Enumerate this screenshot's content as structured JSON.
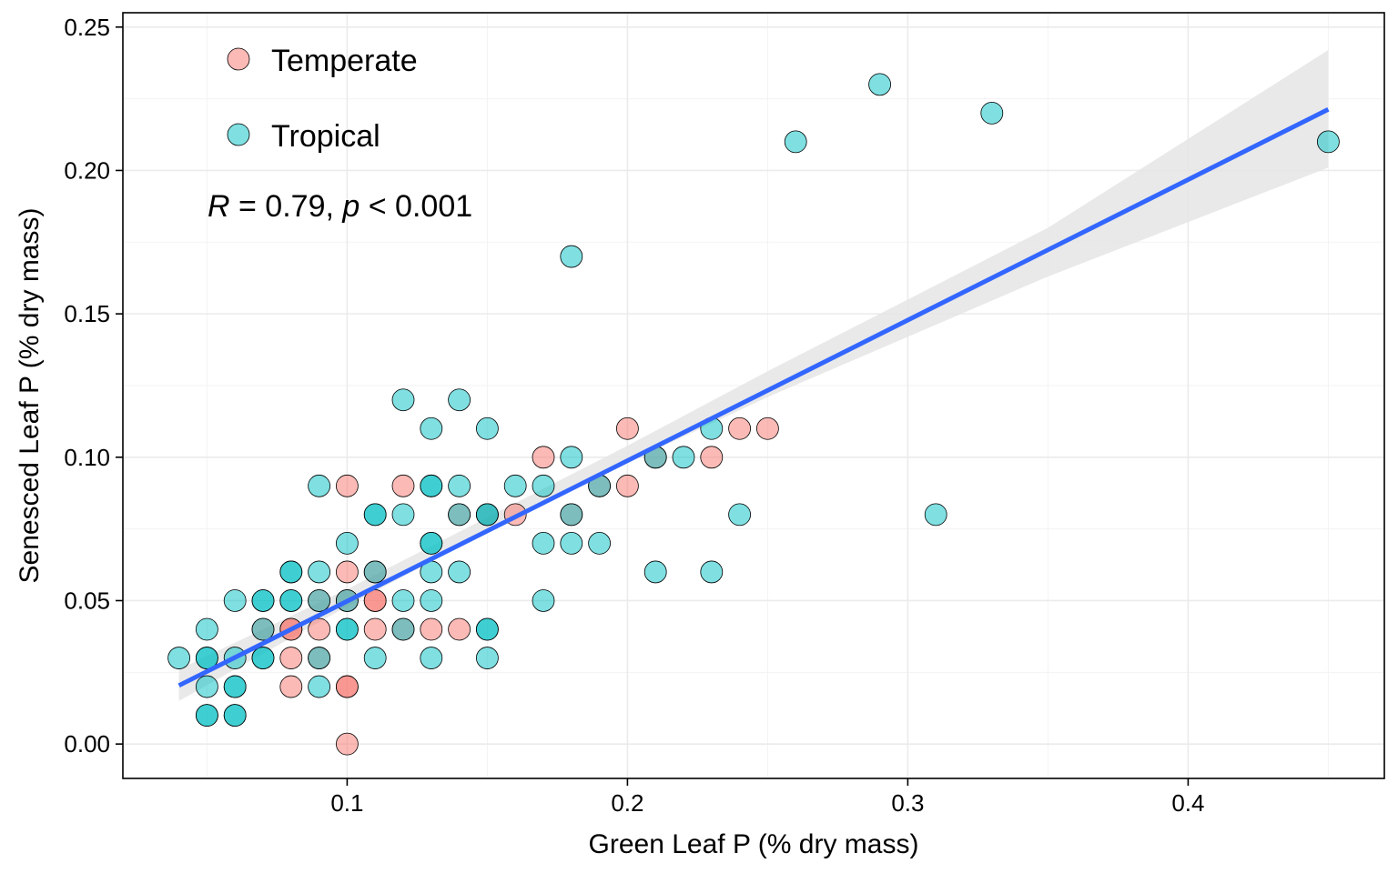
{
  "chart_data": {
    "type": "scatter",
    "title": "",
    "xlabel": "Green Leaf P (% dry mass)",
    "ylabel": "Senesced Leaf P (% dry mass)",
    "xlim": [
      0.02,
      0.47
    ],
    "ylim": [
      -0.012,
      0.255
    ],
    "x_ticks": [
      0.1,
      0.2,
      0.3,
      0.4
    ],
    "x_tick_labels": [
      "0.1",
      "0.2",
      "0.3",
      "0.4"
    ],
    "y_ticks": [
      0.0,
      0.05,
      0.1,
      0.15,
      0.2,
      0.25
    ],
    "y_tick_labels": [
      "0.00",
      "0.05",
      "0.10",
      "0.15",
      "0.20",
      "0.25"
    ],
    "grid": true,
    "legend_position": "top-left",
    "annotation": {
      "r_symbol": "R",
      "r_text": " = 0.79, ",
      "p_symbol": "p",
      "p_text": " < 0.001"
    },
    "series": [
      {
        "name": "Temperate",
        "color": "#F8766D",
        "points": [
          [
            0.1,
            0.0
          ],
          [
            0.08,
            0.02
          ],
          [
            0.1,
            0.02
          ],
          [
            0.1,
            0.02
          ],
          [
            0.08,
            0.03
          ],
          [
            0.09,
            0.03
          ],
          [
            0.07,
            0.04
          ],
          [
            0.08,
            0.04
          ],
          [
            0.08,
            0.04
          ],
          [
            0.09,
            0.04
          ],
          [
            0.11,
            0.04
          ],
          [
            0.12,
            0.04
          ],
          [
            0.13,
            0.04
          ],
          [
            0.14,
            0.04
          ],
          [
            0.1,
            0.05
          ],
          [
            0.11,
            0.05
          ],
          [
            0.11,
            0.05
          ],
          [
            0.09,
            0.05
          ],
          [
            0.1,
            0.06
          ],
          [
            0.11,
            0.06
          ],
          [
            0.14,
            0.08
          ],
          [
            0.15,
            0.08
          ],
          [
            0.16,
            0.08
          ],
          [
            0.18,
            0.08
          ],
          [
            0.1,
            0.09
          ],
          [
            0.12,
            0.09
          ],
          [
            0.19,
            0.09
          ],
          [
            0.2,
            0.09
          ],
          [
            0.17,
            0.1
          ],
          [
            0.21,
            0.1
          ],
          [
            0.23,
            0.1
          ],
          [
            0.2,
            0.11
          ],
          [
            0.24,
            0.11
          ],
          [
            0.25,
            0.11
          ]
        ]
      },
      {
        "name": "Tropical",
        "color": "#00BFC4",
        "points": [
          [
            0.05,
            0.01
          ],
          [
            0.05,
            0.01
          ],
          [
            0.06,
            0.01
          ],
          [
            0.06,
            0.01
          ],
          [
            0.05,
            0.02
          ],
          [
            0.06,
            0.02
          ],
          [
            0.06,
            0.02
          ],
          [
            0.09,
            0.02
          ],
          [
            0.04,
            0.03
          ],
          [
            0.05,
            0.03
          ],
          [
            0.05,
            0.03
          ],
          [
            0.06,
            0.03
          ],
          [
            0.07,
            0.03
          ],
          [
            0.07,
            0.03
          ],
          [
            0.09,
            0.03
          ],
          [
            0.11,
            0.03
          ],
          [
            0.13,
            0.03
          ],
          [
            0.15,
            0.03
          ],
          [
            0.05,
            0.04
          ],
          [
            0.07,
            0.04
          ],
          [
            0.1,
            0.04
          ],
          [
            0.1,
            0.04
          ],
          [
            0.12,
            0.04
          ],
          [
            0.15,
            0.04
          ],
          [
            0.15,
            0.04
          ],
          [
            0.06,
            0.05
          ],
          [
            0.07,
            0.05
          ],
          [
            0.07,
            0.05
          ],
          [
            0.08,
            0.05
          ],
          [
            0.08,
            0.05
          ],
          [
            0.09,
            0.05
          ],
          [
            0.1,
            0.05
          ],
          [
            0.12,
            0.05
          ],
          [
            0.13,
            0.05
          ],
          [
            0.17,
            0.05
          ],
          [
            0.08,
            0.06
          ],
          [
            0.08,
            0.06
          ],
          [
            0.09,
            0.06
          ],
          [
            0.11,
            0.06
          ],
          [
            0.13,
            0.06
          ],
          [
            0.14,
            0.06
          ],
          [
            0.21,
            0.06
          ],
          [
            0.23,
            0.06
          ],
          [
            0.1,
            0.07
          ],
          [
            0.13,
            0.07
          ],
          [
            0.13,
            0.07
          ],
          [
            0.17,
            0.07
          ],
          [
            0.18,
            0.07
          ],
          [
            0.19,
            0.07
          ],
          [
            0.11,
            0.08
          ],
          [
            0.11,
            0.08
          ],
          [
            0.12,
            0.08
          ],
          [
            0.14,
            0.08
          ],
          [
            0.15,
            0.08
          ],
          [
            0.15,
            0.08
          ],
          [
            0.18,
            0.08
          ],
          [
            0.24,
            0.08
          ],
          [
            0.31,
            0.08
          ],
          [
            0.09,
            0.09
          ],
          [
            0.13,
            0.09
          ],
          [
            0.13,
            0.09
          ],
          [
            0.14,
            0.09
          ],
          [
            0.16,
            0.09
          ],
          [
            0.17,
            0.09
          ],
          [
            0.19,
            0.09
          ],
          [
            0.18,
            0.1
          ],
          [
            0.21,
            0.1
          ],
          [
            0.22,
            0.1
          ],
          [
            0.13,
            0.11
          ],
          [
            0.15,
            0.11
          ],
          [
            0.23,
            0.11
          ],
          [
            0.12,
            0.12
          ],
          [
            0.14,
            0.12
          ],
          [
            0.18,
            0.17
          ],
          [
            0.26,
            0.21
          ],
          [
            0.45,
            0.21
          ],
          [
            0.33,
            0.22
          ],
          [
            0.29,
            0.23
          ]
        ]
      }
    ],
    "fit_line": {
      "color": "#3366FF",
      "x": [
        0.04,
        0.45
      ],
      "y": [
        0.0204,
        0.2213
      ]
    },
    "confidence_band": {
      "color": "#e5e5e5",
      "x": [
        0.04,
        0.1,
        0.15,
        0.2,
        0.25,
        0.3,
        0.35,
        0.4,
        0.45
      ],
      "lower": [
        0.015,
        0.048,
        0.074,
        0.098,
        0.121,
        0.142,
        0.163,
        0.182,
        0.201
      ],
      "upper": [
        0.026,
        0.054,
        0.079,
        0.104,
        0.13,
        0.155,
        0.18,
        0.211,
        0.242
      ]
    }
  }
}
